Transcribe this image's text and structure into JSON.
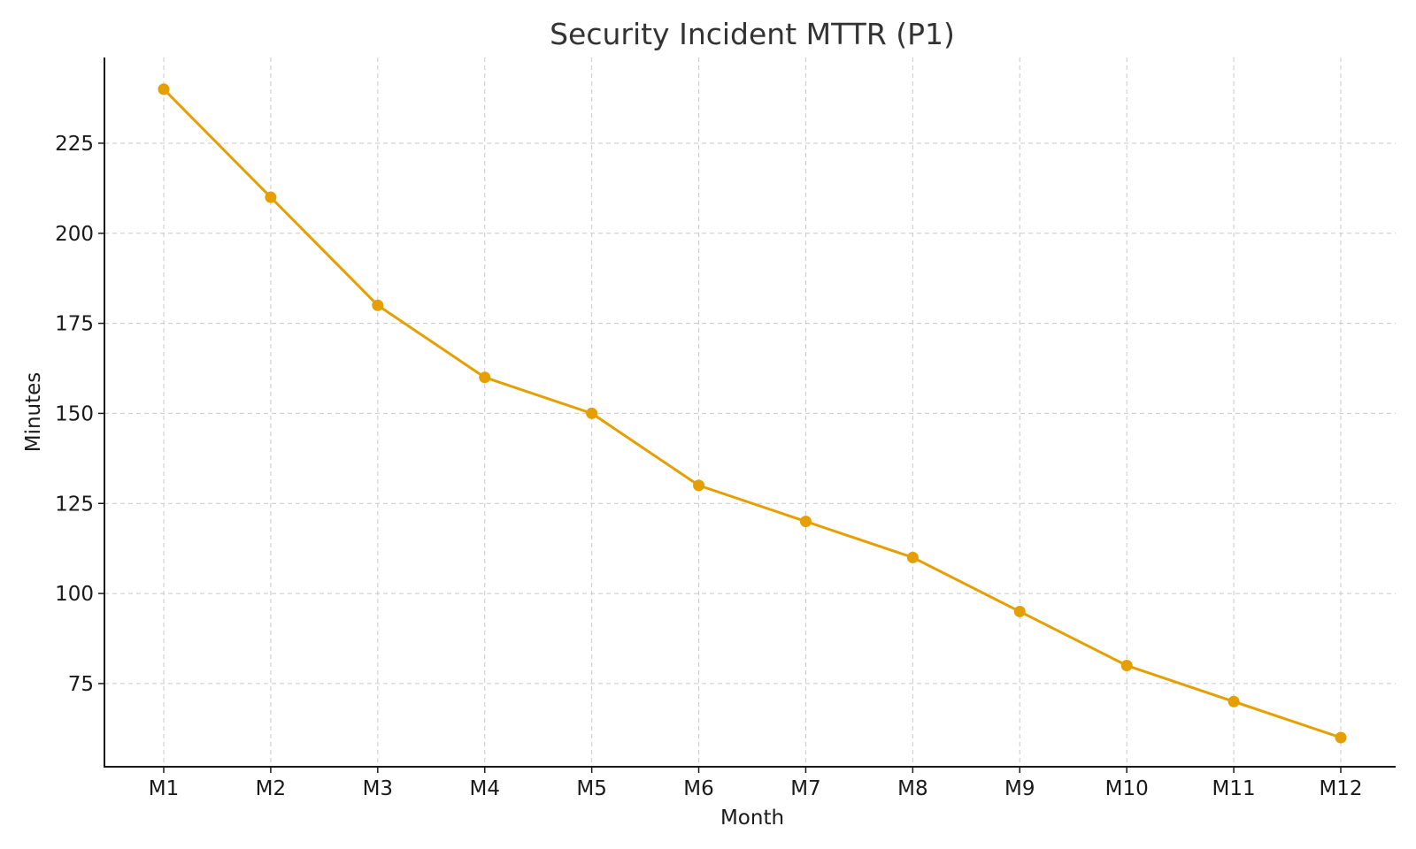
{
  "chart_data": {
    "type": "line",
    "title": "Security Incident MTTR (P1)",
    "xlabel": "Month",
    "ylabel": "Minutes",
    "categories": [
      "M1",
      "M2",
      "M3",
      "M4",
      "M5",
      "M6",
      "M7",
      "M8",
      "M9",
      "M10",
      "M11",
      "M12"
    ],
    "series": [
      {
        "name": "MTTR (P1)",
        "values": [
          240,
          210,
          180,
          160,
          150,
          130,
          120,
          110,
          95,
          80,
          70,
          60
        ],
        "color": "#E69F00",
        "marker": "circle"
      }
    ],
    "yticks": [
      75,
      100,
      125,
      150,
      175,
      200,
      225
    ],
    "ylim": [
      51.9,
      248.8
    ],
    "grid": true,
    "legend": "none"
  }
}
